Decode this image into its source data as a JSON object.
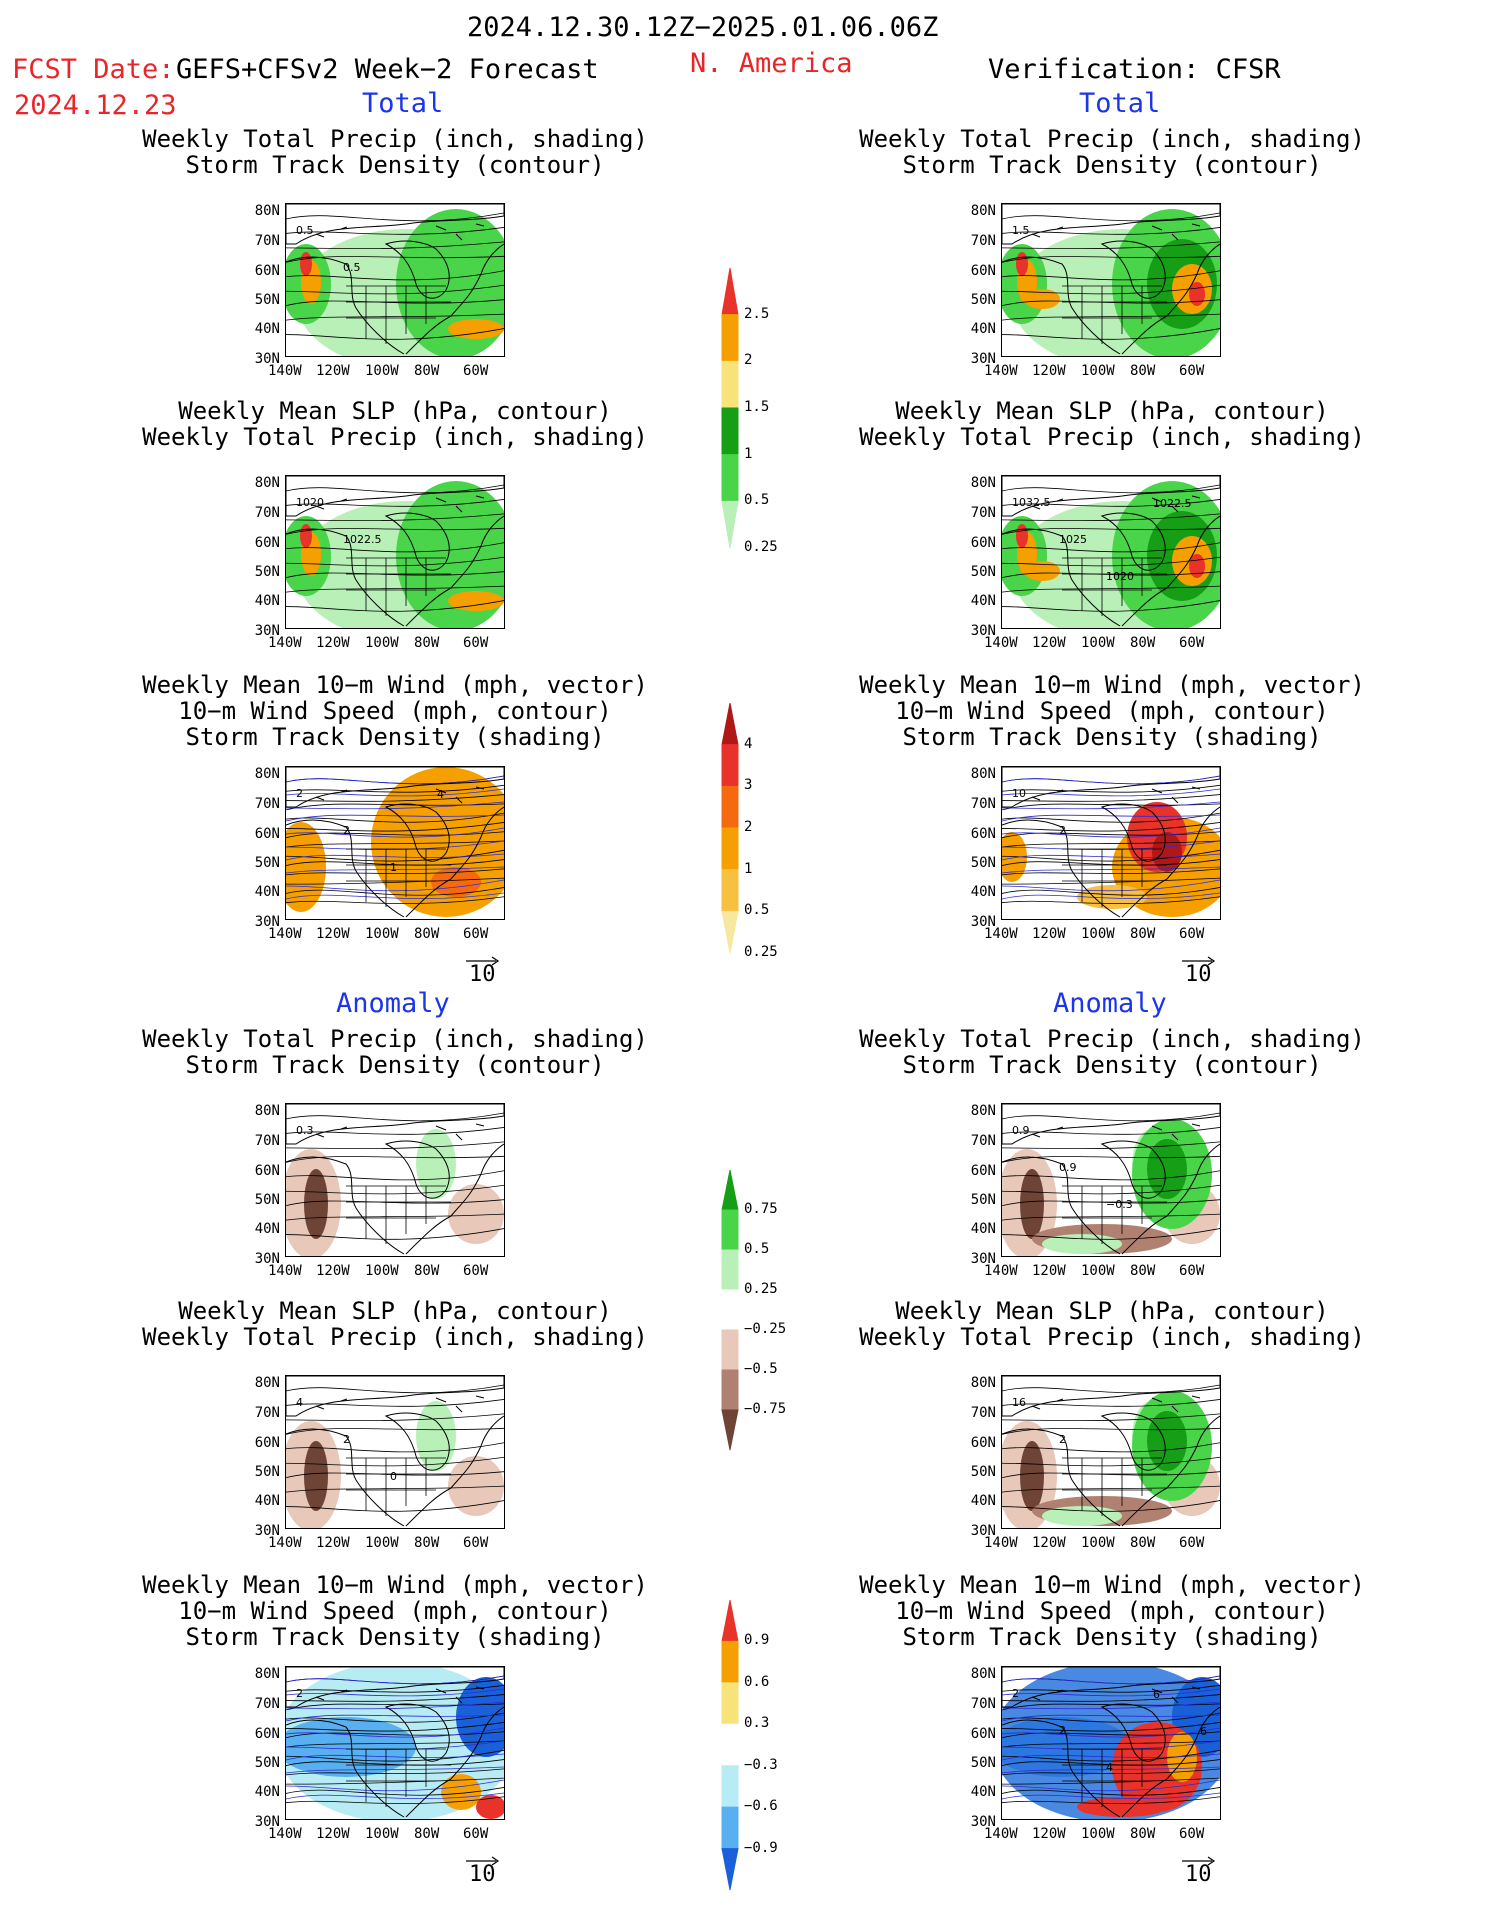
{
  "header": {
    "date_range": "2024.12.30.12Z−2025.01.06.06Z",
    "fcst_label": "FCST Date:",
    "model": "GEFS+CFSv2 Week−2 Forecast",
    "fcst_date": "2024.12.23",
    "region": "N. America",
    "verification": "Verification: CFSR"
  },
  "sections": {
    "total": "Total",
    "anomaly": "Anomaly"
  },
  "panel_titles": {
    "precip_storm": [
      "Weekly Total Precip (inch, shading)",
      "Storm Track Density (contour)"
    ],
    "slp_precip": [
      "Weekly Mean SLP (hPa, contour)",
      "Weekly Total Precip (inch, shading)"
    ],
    "wind_storm": [
      "Weekly Mean 10−m Wind (mph, vector)",
      "10−m Wind Speed (mph, contour)",
      "Storm Track Density (shading)"
    ]
  },
  "axes": {
    "lat_labels": [
      "80N",
      "70N",
      "60N",
      "50N",
      "40N",
      "30N"
    ],
    "lon_labels": [
      "140W",
      "120W",
      "100W",
      "80W",
      "60W"
    ]
  },
  "vector_ref": "10",
  "colorbars": {
    "precip_total": {
      "labels": [
        "2.5",
        "2",
        "1.5",
        "1",
        "0.5",
        "0.25"
      ],
      "colors": [
        "#e8322a",
        "#f5a000",
        "#f7e37a",
        "#169e16",
        "#49d449",
        "#b8f0b8"
      ]
    },
    "storm_total": {
      "labels": [
        "4",
        "3",
        "2",
        "1",
        "0.5",
        "0.25"
      ],
      "colors": [
        "#b01818",
        "#e8322a",
        "#f56a10",
        "#f5a000",
        "#f7c040",
        "#f7e8a0"
      ]
    },
    "precip_anom": {
      "labels": [
        "0.75",
        "0.5",
        "0.25",
        "−0.25",
        "−0.5",
        "−0.75"
      ],
      "colors": [
        "#169e16",
        "#49d449",
        "#b8f0b8",
        "#ffffff",
        "#e8c8b8",
        "#b08070",
        "#6e4436"
      ]
    },
    "storm_anom": {
      "labels": [
        "0.9",
        "0.6",
        "0.3",
        "−0.3",
        "−0.6",
        "−0.9"
      ],
      "colors": [
        "#e8322a",
        "#f5a000",
        "#f7e37a",
        "#ffffff",
        "#b8ecf5",
        "#58b0f0",
        "#1a60d8"
      ]
    }
  },
  "contour_labels": {
    "f1": [
      "0.5",
      "0.5"
    ],
    "v1": [
      "1.5"
    ],
    "f2": [
      "1020",
      "1022.5"
    ],
    "v2": [
      "1032.5",
      "1025",
      "1020",
      "1022.5"
    ],
    "f3": [
      "2",
      "2",
      "1",
      "4"
    ],
    "v3": [
      "10",
      "2"
    ],
    "f4": [
      "0.3"
    ],
    "v4": [
      "0.9",
      "0.9",
      "−0.3"
    ],
    "f5": [
      "4",
      "2",
      "0"
    ],
    "v5": [
      "16",
      "2"
    ],
    "f6": [
      "2"
    ],
    "v6": [
      "2",
      "2",
      "4",
      "6",
      "6"
    ]
  }
}
